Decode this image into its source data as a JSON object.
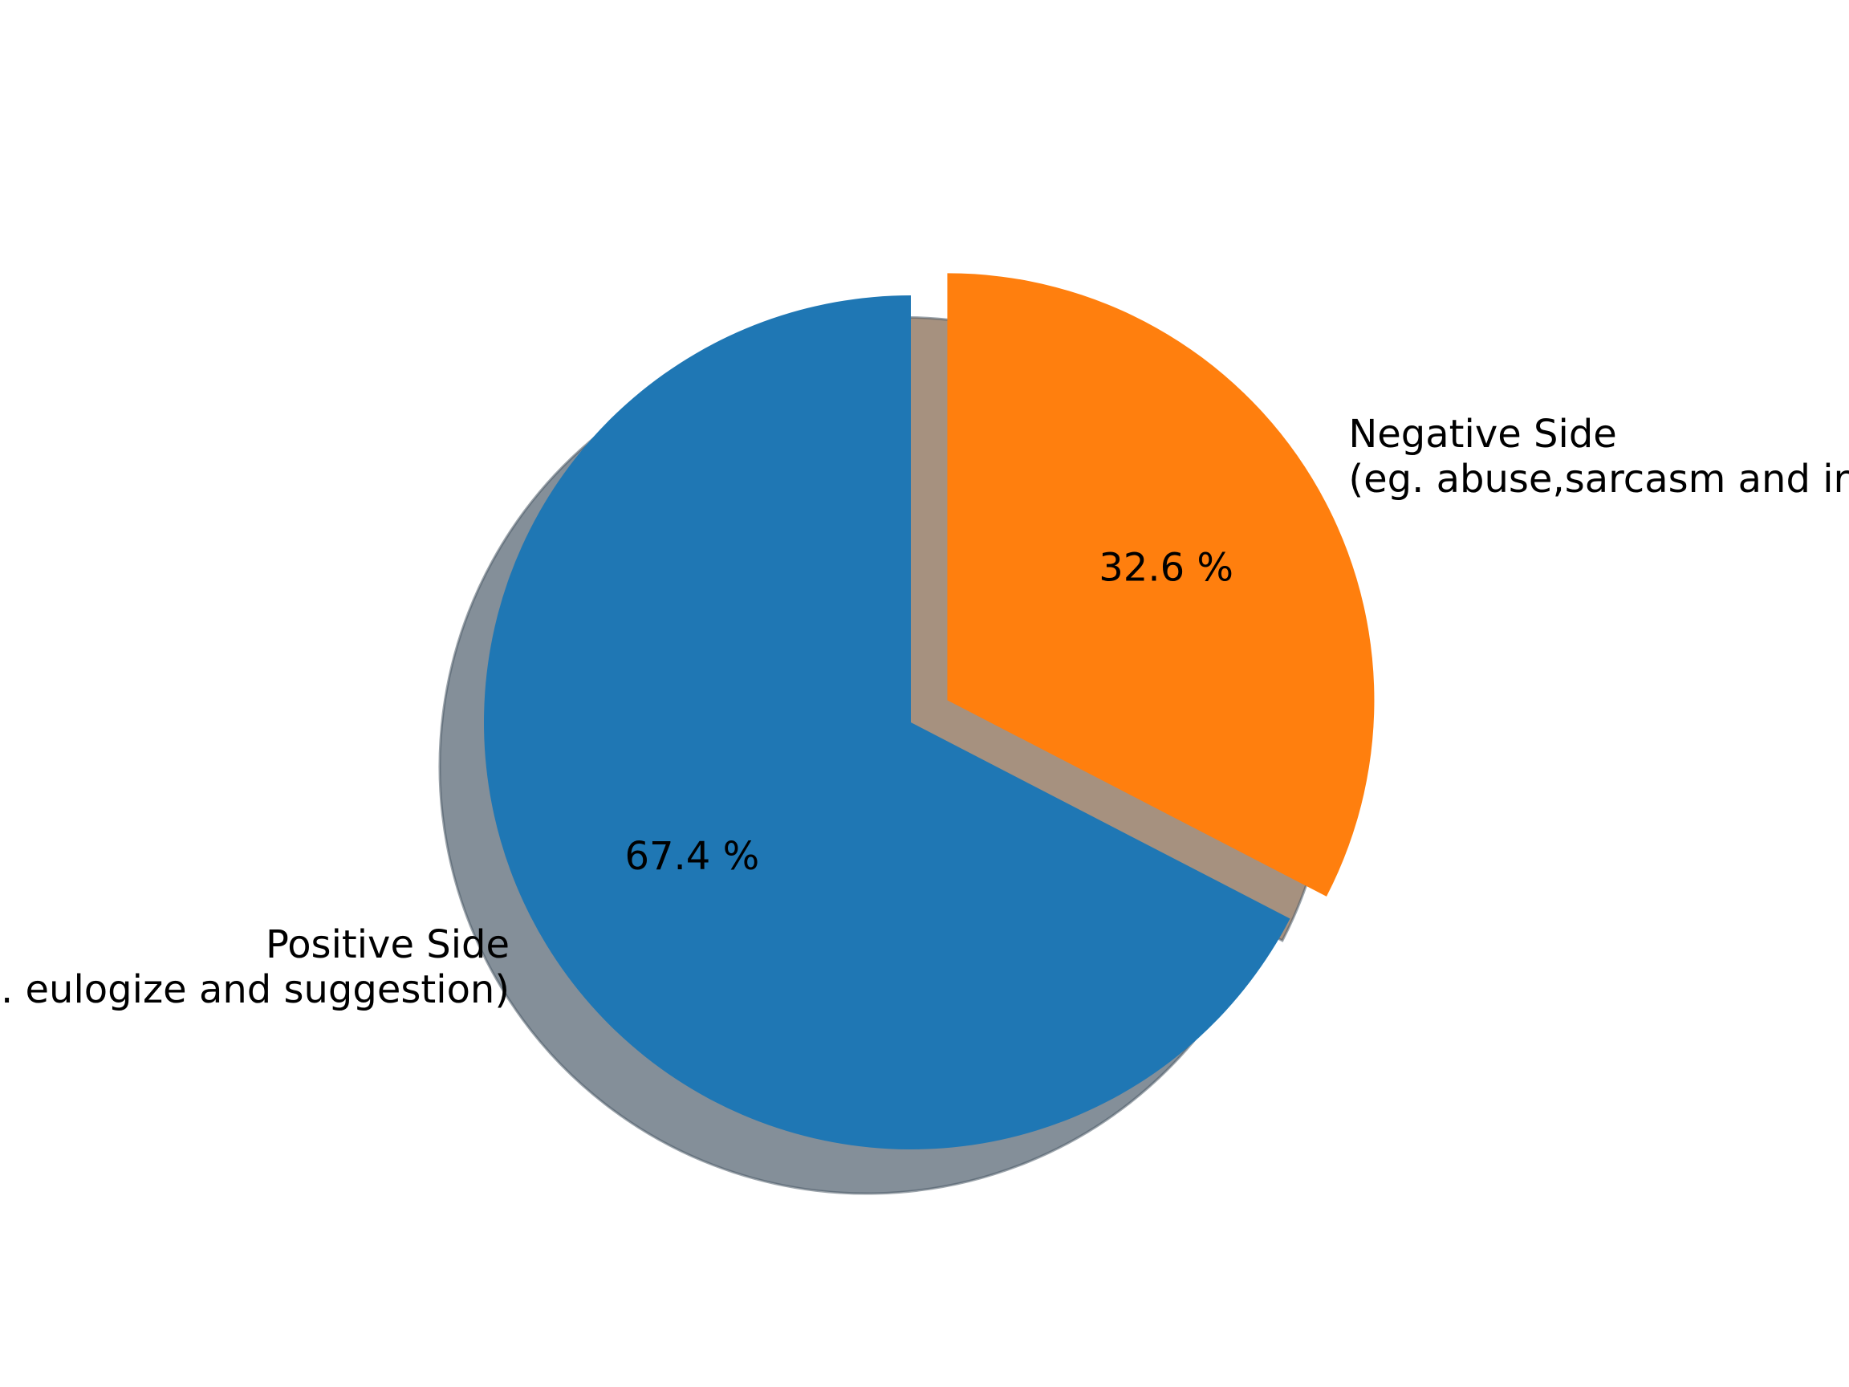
{
  "chart_data": {
    "type": "pie",
    "title": "",
    "start_angle_deg": 90,
    "direction": "clockwise",
    "shadow": true,
    "slices": [
      {
        "label_lines": [
          "Negative Side",
          "(eg. abuse,sarcasm and irony)"
        ],
        "value": 32.6,
        "pct_label": "32.6 %",
        "color": "#ff7f0e",
        "shadow_color": "#a6917f",
        "explode": 0.1
      },
      {
        "label_lines": [
          "Positive Side",
          "(eg. eulogize and suggestion)"
        ],
        "value": 67.4,
        "pct_label": "67.4 %",
        "color": "#1f77b4",
        "shadow_color": "#848f99",
        "explode": 0
      }
    ]
  }
}
